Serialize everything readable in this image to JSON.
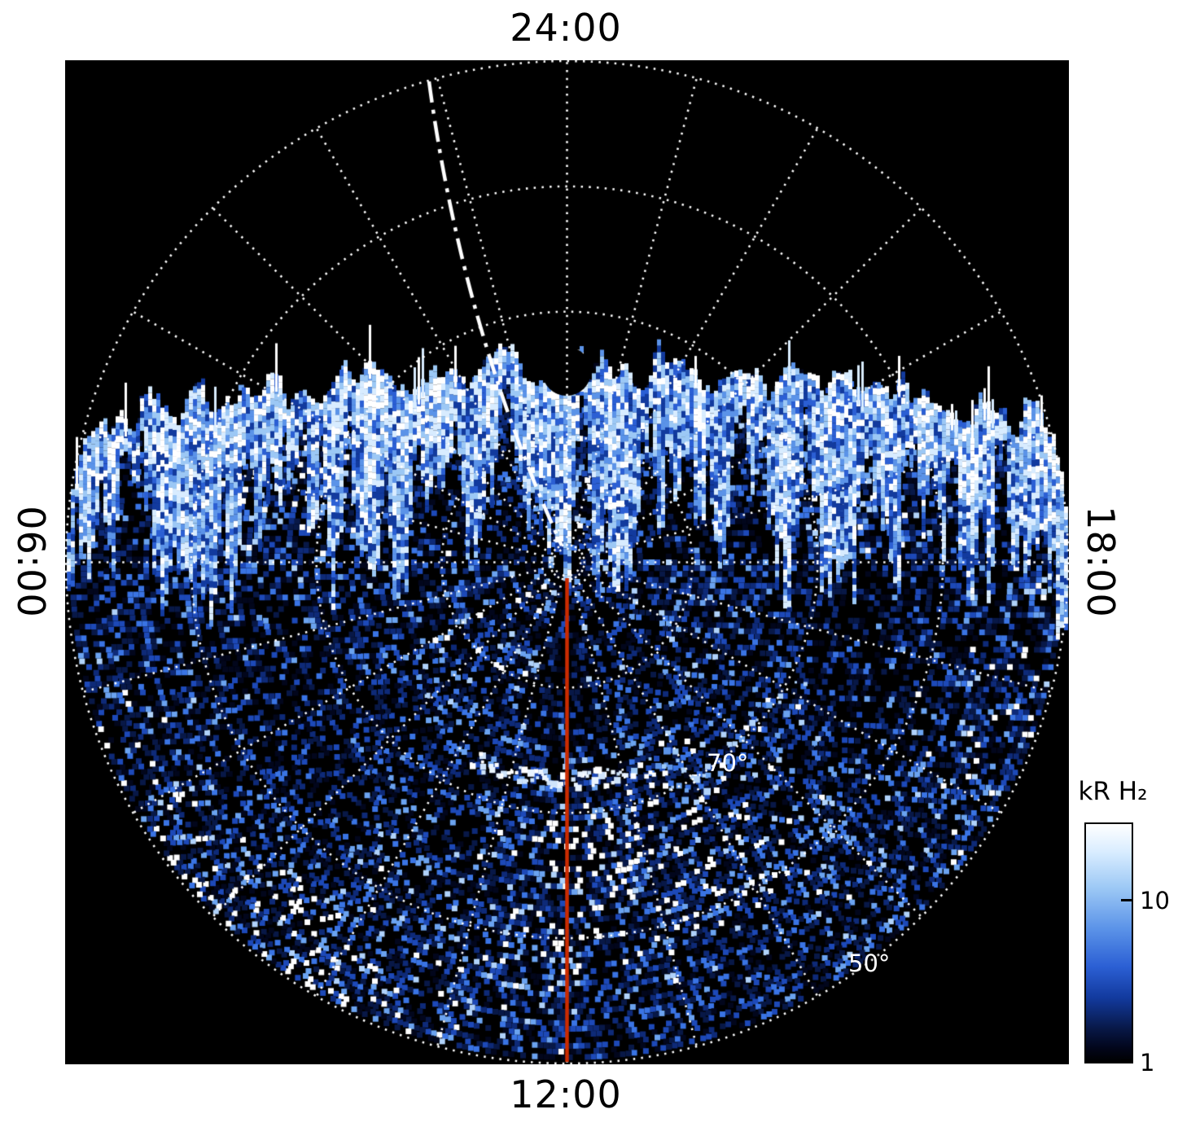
{
  "figure": {
    "background_color": "#ffffff",
    "plot_background_color": "#000000"
  },
  "chart_data": {
    "type": "heatmap",
    "projection": "polar",
    "description": "Polar-projection map of H2 auroral emission brightness (kR) versus local time (angle) and latitude (radius). A bright blue/white emission band crosses the plot near 70-80 degrees latitude through the dawn-midnight-dusk sector; fainter speckled emission fills the dayside (lower) half down to the 50 degree outer ring; the high-latitude sector at the top of the plot contains no data (black).",
    "angular_axis": {
      "quantity": "local time",
      "labels": [
        {
          "text": "24:00",
          "position": "top"
        },
        {
          "text": "06:00",
          "position": "left"
        },
        {
          "text": "12:00",
          "position": "bottom"
        },
        {
          "text": "18:00",
          "position": "right"
        }
      ]
    },
    "radial_axis": {
      "quantity": "latitude",
      "pole_deg": 90,
      "outer_ring_deg": 50,
      "ring_labels": [
        {
          "text": "70°",
          "radius_frac": 0.5
        },
        {
          "text": "50°",
          "radius_frac": 1.0
        }
      ]
    },
    "grid": {
      "style": "dotted",
      "color": "#ffffff",
      "ring_radius_fracs": [
        0.25,
        0.5,
        0.75,
        1.0
      ],
      "center_circle_radius_frac": 0.027,
      "spoke_step_deg": 15
    },
    "annotations": {
      "noon_meridian_line": {
        "color": "#cc2b00",
        "from": "center",
        "to": "12:00 rim"
      },
      "trajectory_line": {
        "style": "dash-dot",
        "color": "#ffffff",
        "from": "top rim near 23:00",
        "to": "center"
      }
    },
    "colorbar": {
      "title": "kR H₂",
      "scale": "log",
      "vmin": 1,
      "vmax": 30,
      "ticks": [
        {
          "label": "10",
          "value": 10
        },
        {
          "label": "1",
          "value": 1
        }
      ],
      "gradient_top_to_bottom": [
        {
          "color": "#ffffff",
          "pos": 0
        },
        {
          "color": "#d8ecff",
          "pos": 0.12
        },
        {
          "color": "#9cc8f5",
          "pos": 0.27
        },
        {
          "color": "#5b93e8",
          "pos": 0.44
        },
        {
          "color": "#2b5fd4",
          "pos": 0.6
        },
        {
          "color": "#123a9e",
          "pos": 0.73
        },
        {
          "color": "#081847",
          "pos": 0.86
        },
        {
          "color": "#02061c",
          "pos": 0.94
        },
        {
          "color": "#000000",
          "pos": 1
        }
      ]
    },
    "speckle_palette_dark_to_bright": [
      "#000000",
      "#02061c",
      "#081847",
      "#0e2a78",
      "#1d49b8",
      "#3a74e4",
      "#6ba3f0",
      "#b0d2fa",
      "#ffffff"
    ],
    "band_palette_dark_to_bright": [
      "#123a9e",
      "#2b5fd4",
      "#5b93e8",
      "#9cc8f5",
      "#d8ecff",
      "#ffffff"
    ]
  }
}
